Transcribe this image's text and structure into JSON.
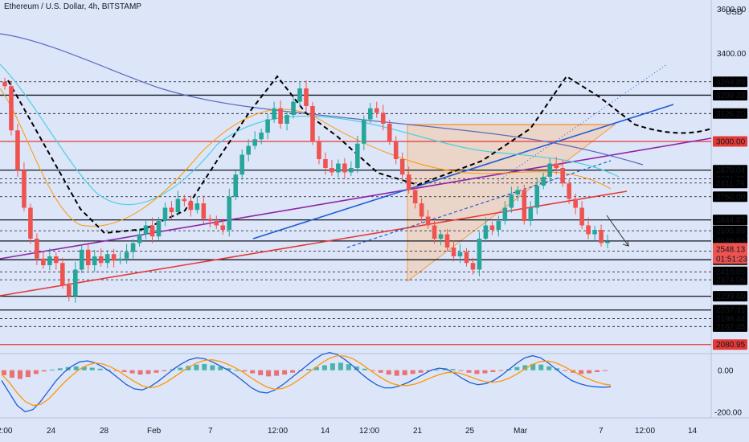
{
  "title": "Ethereum / U.S. Dollar, 4h, BITSTAMP",
  "currency": "USD",
  "colors": {
    "background": "#dde5f8",
    "up": "#26a69a",
    "down": "#ef5350",
    "red_level": "#e53935",
    "purple_line": "#8e24aa",
    "blue_line": "#1e5fd6",
    "triangle_fill": "#f5c7a0",
    "triangle_edge": "#f39c4a"
  },
  "chart_data": [
    {
      "type": "line",
      "title": "Ethereum / U.S. Dollar, 4h, BITSTAMP",
      "ylabel": "USD",
      "ylim": [
        2040,
        3640
      ],
      "x_ticks": [
        "2:00",
        "24",
        "28",
        "Feb",
        "7",
        "12:00",
        "14",
        "12:00",
        "21",
        "25",
        "Mar",
        "7",
        "12:00",
        "14"
      ],
      "y_ticks": [
        "3600.00",
        "3400.00",
        "2400.00",
        "2200.00"
      ],
      "price_levels_black": [
        "3269.89",
        "3209.23",
        "3126.20",
        "2870.04",
        "2831.39",
        "2811.79",
        "2750.00",
        "2644.87",
        "2595.88",
        "2549.53",
        "2503.72",
        "2464.73",
        "2410.05",
        "2374.06",
        "2299.60",
        "2237.31",
        "2198.44",
        "2162.45"
      ],
      "price_levels_red": [
        "3000.00",
        "2080.95"
      ],
      "current_price": "2548.13",
      "countdown": "01:51:23",
      "close_prices": [
        3250,
        3050,
        2870,
        2700,
        2560,
        2470,
        2440,
        2480,
        2450,
        2350,
        2300,
        2420,
        2510,
        2440,
        2480,
        2450,
        2490,
        2460,
        2470,
        2500,
        2540,
        2580,
        2620,
        2570,
        2640,
        2700,
        2680,
        2740,
        2730,
        2690,
        2720,
        2650,
        2640,
        2620,
        2600,
        2750,
        2850,
        2940,
        2980,
        3010,
        3040,
        3100,
        3150,
        3080,
        3120,
        3180,
        3240,
        3160,
        3000,
        2920,
        2880,
        2860,
        2900,
        2860,
        2880,
        2990,
        3100,
        3150,
        3130,
        3080,
        3000,
        2920,
        2850,
        2780,
        2720,
        2660,
        2620,
        2560,
        2580,
        2520,
        2480,
        2500,
        2450,
        2420,
        2560,
        2620,
        2600,
        2640,
        2700,
        2760,
        2780,
        2640,
        2700,
        2800,
        2840,
        2900,
        2880,
        2810,
        2740,
        2700,
        2620,
        2580,
        2600,
        2540,
        2548
      ],
      "oscillator": {
        "title": "",
        "y_ticks": [
          "0.00",
          "-200.00"
        ],
        "histogram": [
          -40,
          -60,
          -70,
          -55,
          -30,
          -10,
          5,
          15,
          25,
          30,
          28,
          20,
          12,
          5,
          -5,
          -15,
          -25,
          -35,
          -30,
          -20,
          -8,
          8,
          20,
          35,
          45,
          50,
          40,
          28,
          15,
          0,
          -10,
          -25,
          -40,
          -50,
          -45,
          -35,
          -20,
          -5,
          10,
          25,
          40,
          55,
          60,
          48,
          30,
          12,
          -5,
          -20,
          -35,
          -45,
          -40,
          -30,
          -20,
          -10,
          5,
          15,
          10,
          -5,
          -20,
          -30,
          -25,
          -15,
          -5,
          10,
          25,
          40,
          50,
          45,
          30,
          15,
          -5,
          -20,
          -30,
          -25,
          -15,
          -5
        ],
        "macd": [
          -50,
          -110,
          -170,
          -200,
          -190,
          -150,
          -100,
          -50,
          -10,
          20,
          40,
          45,
          35,
          15,
          -10,
          -40,
          -70,
          -90,
          -95,
          -80,
          -55,
          -25,
          5,
          30,
          50,
          60,
          55,
          40,
          20,
          0,
          -25,
          -55,
          -85,
          -105,
          -110,
          -95,
          -70,
          -40,
          -10,
          20,
          50,
          75,
          85,
          75,
          50,
          20,
          -15,
          -45,
          -70,
          -85,
          -85,
          -75,
          -60,
          -40,
          -20,
          0,
          10,
          5,
          -15,
          -40,
          -60,
          -70,
          -65,
          -50,
          -25,
          5,
          35,
          60,
          70,
          60,
          35,
          5,
          -25,
          -50,
          -65,
          -75,
          -80,
          -82,
          -80
        ],
        "signal": [
          -20,
          -60,
          -110,
          -150,
          -170,
          -165,
          -140,
          -100,
          -60,
          -25,
          5,
          25,
          35,
          30,
          15,
          -5,
          -30,
          -55,
          -75,
          -85,
          -78,
          -60,
          -35,
          -10,
          15,
          35,
          48,
          50,
          42,
          28,
          10,
          -12,
          -38,
          -62,
          -82,
          -92,
          -88,
          -72,
          -48,
          -20,
          8,
          35,
          58,
          70,
          68,
          55,
          32,
          5,
          -22,
          -46,
          -64,
          -74,
          -74,
          -66,
          -52,
          -36,
          -22,
          -12,
          -10,
          -18,
          -32,
          -46,
          -56,
          -58,
          -52,
          -38,
          -18,
          6,
          28,
          42,
          44,
          35,
          18,
          -2,
          -22,
          -40,
          -55,
          -66,
          -72
        ]
      }
    }
  ]
}
